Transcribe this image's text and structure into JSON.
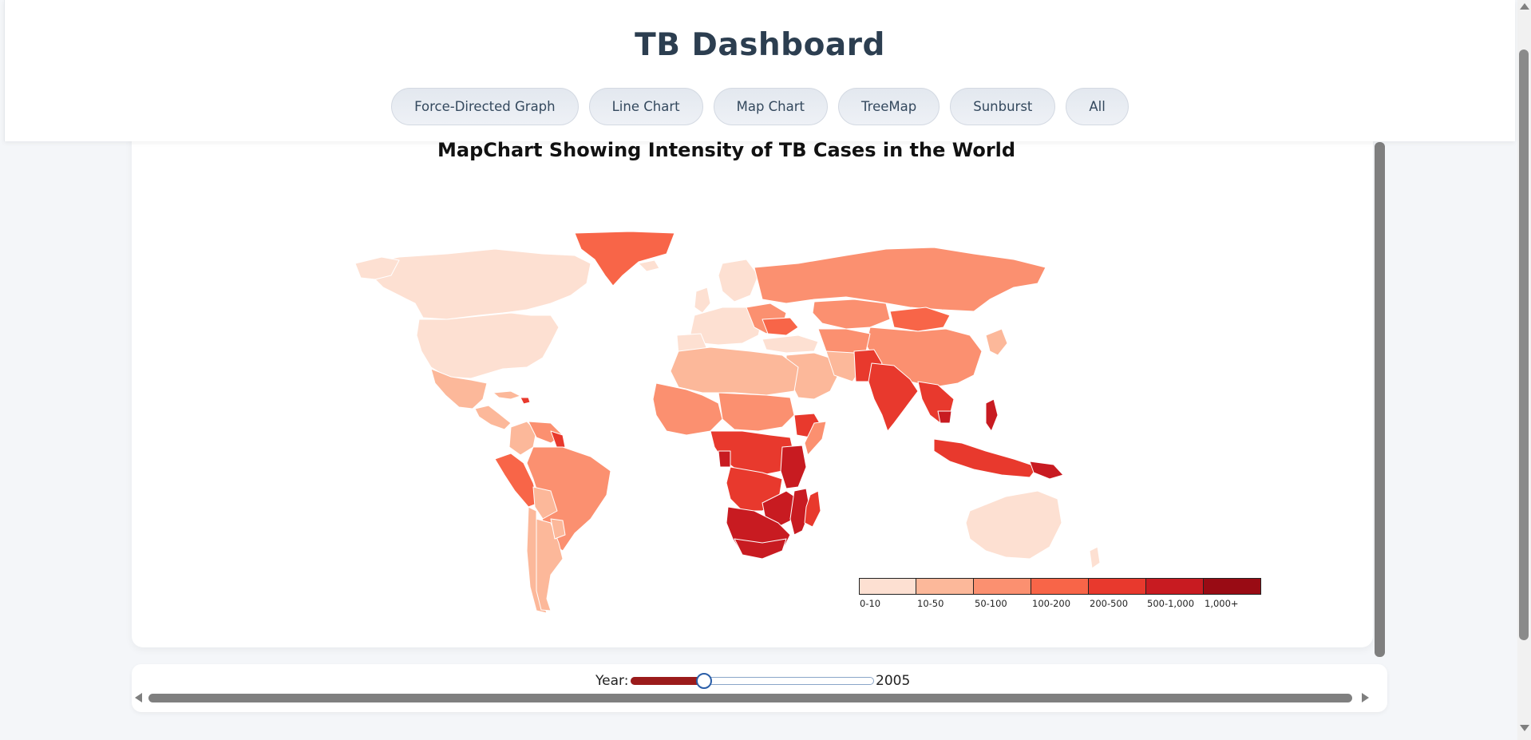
{
  "header": {
    "title": "TB Dashboard",
    "nav": [
      {
        "label": "Force-Directed Graph"
      },
      {
        "label": "Line Chart"
      },
      {
        "label": "Map Chart"
      },
      {
        "label": "TreeMap"
      },
      {
        "label": "Sunburst"
      },
      {
        "label": "All"
      }
    ]
  },
  "map": {
    "title": "MapChart Showing Intensity of TB Cases in the World",
    "legend": {
      "items": [
        {
          "label": "0-10",
          "color": "#fde0d2"
        },
        {
          "label": "10-50",
          "color": "#fcb89a"
        },
        {
          "label": "50-100",
          "color": "#fb9070"
        },
        {
          "label": "100-200",
          "color": "#f86548"
        },
        {
          "label": "200-500",
          "color": "#e8392d"
        },
        {
          "label": "500-1,000",
          "color": "#c81b21"
        },
        {
          "label": "1,000+",
          "color": "#990b14"
        }
      ]
    }
  },
  "controls": {
    "year_label": "Year:",
    "year_value": "2005",
    "slider_fraction": 0.3
  }
}
